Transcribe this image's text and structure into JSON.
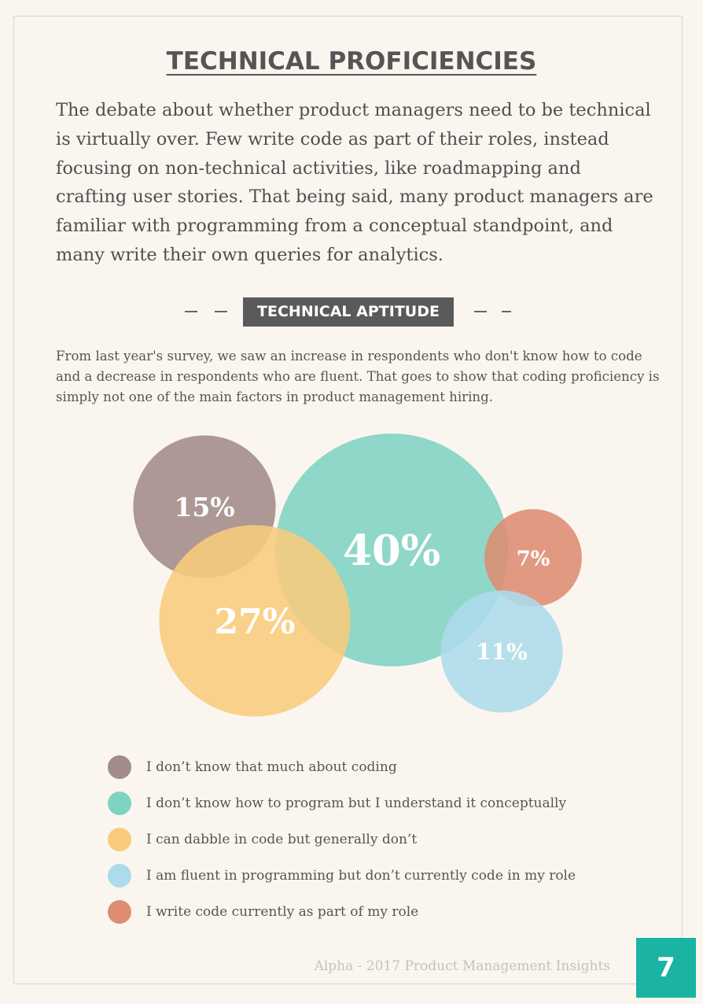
{
  "page": {
    "title": "TECHNICAL PROFICIENCIES",
    "intro": "The debate about whether product managers need to be technical is virtually over. Few write code as part of their roles, instead focusing on non-technical activities, like roadmapping and crafting user stories. That being said, many product managers are familiar with programming from a conceptual standpoint, and many write their own queries for analytics.",
    "section_label": "TECHNICAL APTITUDE",
    "survey_note": "From last year's survey, we saw an increase in respondents who don't know how to code and a decrease in respondents who are fluent. That goes to show that coding proficiency is simply not one of the main factors in product management hiring.",
    "footer": "Alpha - 2017 Product Management Insights",
    "page_number": "7"
  },
  "chart_data": {
    "type": "bubble",
    "title": "",
    "categories": [
      "I don’t know that much about coding",
      "I don’t know how to program but I understand it conceptually",
      "I can dabble in code but generally don’t",
      "I am fluent in programming but don’t currently code in my role",
      "I write code currently as part of my role"
    ],
    "values": [
      15,
      40,
      27,
      11,
      7
    ],
    "labels": [
      "15%",
      "40%",
      "27%",
      "11%",
      "7%"
    ],
    "unit": "%",
    "colors": [
      "#a28b89",
      "#7fd3c3",
      "#f8cc7c",
      "#acdcea",
      "#de8c72"
    ],
    "legend_position": "bottom"
  }
}
